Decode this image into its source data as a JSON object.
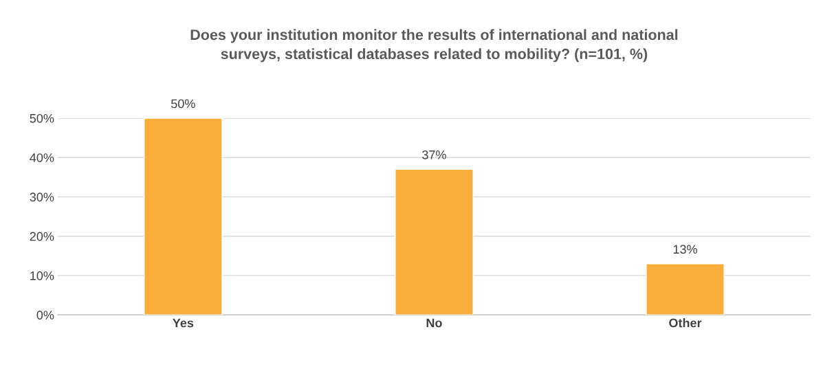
{
  "chart_data": {
    "type": "bar",
    "title": "Does your institution monitor the results of international and national\nsurveys, statistical databases related to mobility? (n=101, %)",
    "categories": [
      "Yes",
      "No",
      "Other"
    ],
    "values": [
      50,
      37,
      13
    ],
    "value_labels": [
      "50%",
      "37%",
      "13%"
    ],
    "color": "#f9ad3a",
    "ylim": [
      0,
      50
    ],
    "yticks": [
      {
        "value": 0,
        "label": "0%"
      },
      {
        "value": 10,
        "label": "10%"
      },
      {
        "value": 20,
        "label": "20%"
      },
      {
        "value": 30,
        "label": "30%"
      },
      {
        "value": 40,
        "label": "40%"
      },
      {
        "value": 50,
        "label": "50%"
      }
    ],
    "grid": "y"
  }
}
